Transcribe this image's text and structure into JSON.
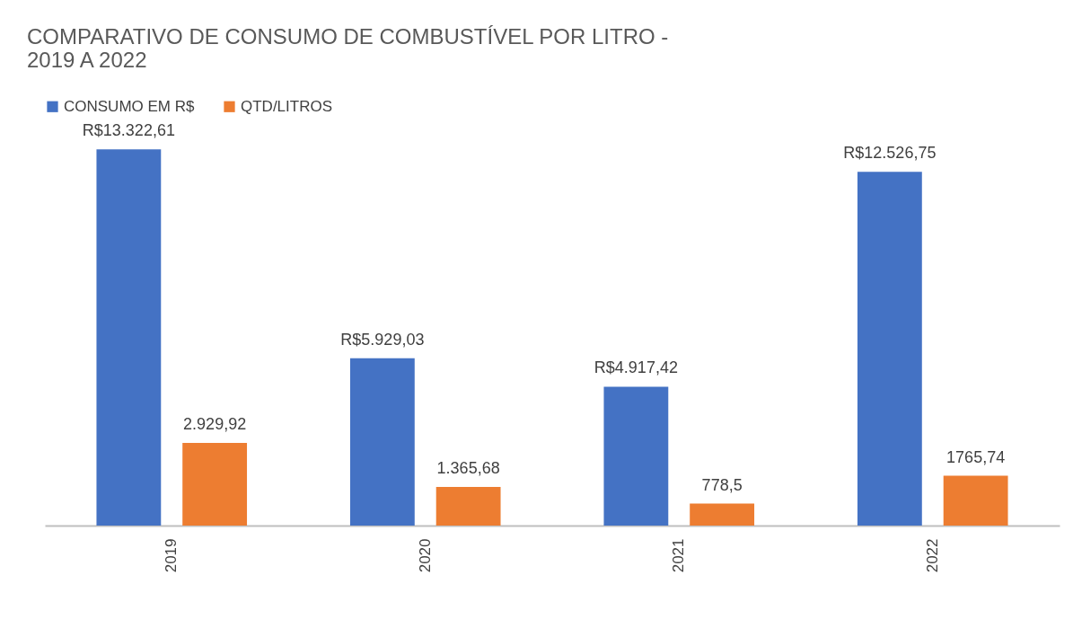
{
  "chart_data": {
    "type": "bar",
    "title": "COMPARATIVO DE CONSUMO DE COMBUSTÍVEL POR LITRO - 2019 A 2022",
    "categories": [
      "2019",
      "2020",
      "2021",
      "2022"
    ],
    "series": [
      {
        "name": "CONSUMO EM R$",
        "color": "#4472c4",
        "values": [
          13322.61,
          5929.03,
          4917.42,
          12526.75
        ],
        "value_labels": [
          "R$13.322,61",
          "R$5.929,03",
          "R$4.917,42",
          "R$12.526,75"
        ]
      },
      {
        "name": "QTD/LITROS",
        "color": "#ed7d31",
        "values": [
          2929.92,
          1365.68,
          778.5,
          1765.74
        ],
        "value_labels": [
          "2.929,92",
          "1.365,68",
          "778,5",
          "1765,74"
        ]
      }
    ],
    "legend": "top",
    "grid": false
  }
}
